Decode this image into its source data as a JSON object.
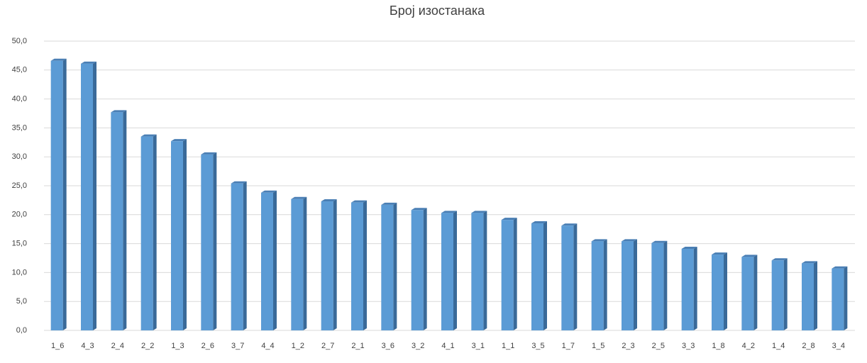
{
  "chart_data": {
    "type": "bar3d",
    "title": "Број изостанака",
    "categories": [
      "1_6",
      "4_3",
      "2_4",
      "2_2",
      "1_3",
      "2_6",
      "3_7",
      "4_4",
      "1_2",
      "2_7",
      "2_1",
      "3_6",
      "3_2",
      "4_1",
      "3_1",
      "1_1",
      "3_5",
      "1_7",
      "1_5",
      "2_3",
      "2_5",
      "3_3",
      "1_8",
      "4_2",
      "1_4",
      "2_8",
      "3_4"
    ],
    "values": [
      46.6,
      46.1,
      37.7,
      33.5,
      32.7,
      30.4,
      25.4,
      23.8,
      22.7,
      22.3,
      22.1,
      21.7,
      20.8,
      20.3,
      20.3,
      19.1,
      18.5,
      18.1,
      15.4,
      15.4,
      15.1,
      14.1,
      13.1,
      12.7,
      12.1,
      11.6,
      10.7
    ],
    "color": "#5b9bd5",
    "ylim": [
      0,
      50
    ],
    "yticks": [
      {
        "value": 0,
        "label": "0,0"
      },
      {
        "value": 5,
        "label": "5,0"
      },
      {
        "value": 10,
        "label": "10,0"
      },
      {
        "value": 15,
        "label": "15,0"
      },
      {
        "value": 20,
        "label": "20,0"
      },
      {
        "value": 25,
        "label": "25,0"
      },
      {
        "value": 30,
        "label": "30,0"
      },
      {
        "value": 35,
        "label": "35,0"
      },
      {
        "value": 40,
        "label": "40,0"
      },
      {
        "value": 45,
        "label": "45,0"
      },
      {
        "value": 50,
        "label": "50,0"
      }
    ],
    "grid": true
  }
}
